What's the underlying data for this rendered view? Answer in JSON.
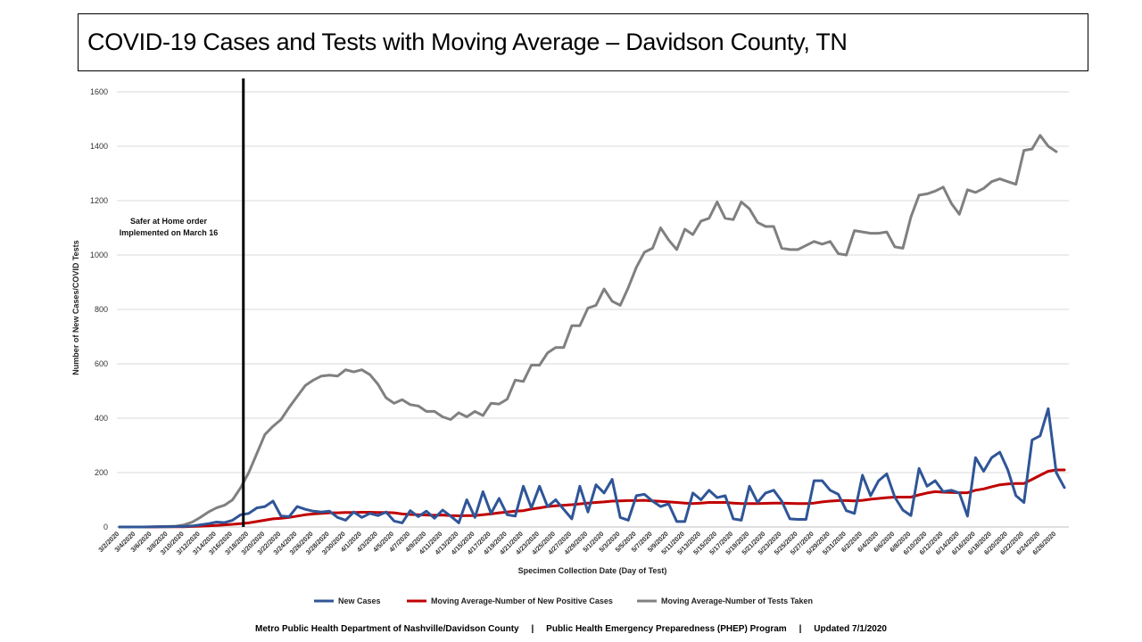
{
  "title": "COVID-19 Cases and Tests with Moving Average – Davidson County, TN",
  "footer": "Metro Public Health Department of Nashville/Davidson County     |     Public Health Emergency Preparedness (PHEP) Program     |     Updated 7/1/2020",
  "chart_data": {
    "type": "line",
    "xlabel": "Specimen Collection Date (Day of Test)",
    "ylabel": "Number of New Cases/COVID Tests",
    "ylim": [
      0,
      1600
    ],
    "yticks": [
      0,
      200,
      400,
      600,
      800,
      1000,
      1200,
      1400,
      1600
    ],
    "grid": true,
    "legend_position": "bottom",
    "start_date": "3/2/2020",
    "xticks": [
      "3/2/2020",
      "3/4/2020",
      "3/6/2020",
      "3/8/2020",
      "3/10/2020",
      "3/12/2020",
      "3/14/2020",
      "3/16/2020",
      "3/18/2020",
      "3/20/2020",
      "3/22/2020",
      "3/24/2020",
      "3/26/2020",
      "3/28/2020",
      "3/30/2020",
      "4/1/2020",
      "4/3/2020",
      "4/5/2020",
      "4/7/2020",
      "4/9/2020",
      "4/11/2020",
      "4/13/2020",
      "4/15/2020",
      "4/17/2020",
      "4/19/2020",
      "4/21/2020",
      "4/23/2020",
      "4/25/2020",
      "4/27/2020",
      "4/29/2020",
      "5/1/2020",
      "5/3/2020",
      "5/5/2020",
      "5/7/2020",
      "5/9/2020",
      "5/11/2020",
      "5/13/2020",
      "5/15/2020",
      "5/17/2020",
      "5/19/2020",
      "5/21/2020",
      "5/23/2020",
      "5/25/2020",
      "5/27/2020",
      "5/29/2020",
      "5/31/2020",
      "6/2/2020",
      "6/4/2020",
      "6/6/2020",
      "6/8/2020",
      "6/10/2020",
      "6/12/2020",
      "6/14/2020",
      "6/16/2020",
      "6/18/2020",
      "6/20/2020",
      "6/22/2020",
      "6/24/2020",
      "6/26/2020"
    ],
    "annotation": {
      "date": "3/17/2020",
      "lines": [
        "Safer at Home order",
        "Implemented on March 16"
      ]
    },
    "series": [
      {
        "name": "New Cases",
        "color": "#2F5597",
        "values": [
          0,
          0,
          0,
          0,
          1,
          1,
          1,
          2,
          2,
          4,
          8,
          12,
          18,
          16,
          25,
          45,
          50,
          70,
          75,
          95,
          40,
          38,
          75,
          65,
          58,
          55,
          58,
          35,
          25,
          55,
          35,
          50,
          42,
          55,
          22,
          15,
          60,
          38,
          58,
          32,
          62,
          40,
          15,
          100,
          35,
          130,
          50,
          105,
          45,
          40,
          150,
          70,
          150,
          75,
          100,
          65,
          30,
          150,
          55,
          155,
          125,
          175,
          35,
          25,
          115,
          120,
          95,
          75,
          85,
          20,
          20,
          125,
          100,
          135,
          108,
          115,
          30,
          25,
          150,
          90,
          125,
          135,
          95,
          30,
          28,
          28,
          170,
          170,
          135,
          120,
          60,
          50,
          190,
          115,
          170,
          195,
          110,
          62,
          42,
          215,
          150,
          170,
          130,
          135,
          125,
          40,
          255,
          205,
          255,
          275,
          210,
          115,
          90,
          320,
          335,
          435,
          200,
          145
        ]
      },
      {
        "name": "Moving Average-Number of New Positive Cases",
        "color": "#C00000",
        "values": [
          0,
          0,
          0,
          0,
          0,
          1,
          1,
          1,
          1,
          2,
          3,
          4,
          6,
          8,
          10,
          12,
          15,
          20,
          25,
          30,
          32,
          35,
          40,
          45,
          48,
          50,
          52,
          52,
          53,
          53,
          54,
          54,
          53,
          53,
          52,
          48,
          46,
          45,
          44,
          43,
          44,
          42,
          41,
          42,
          42,
          45,
          48,
          52,
          55,
          58,
          60,
          66,
          70,
          75,
          78,
          80,
          82,
          85,
          88,
          90,
          92,
          95,
          96,
          97,
          97,
          98,
          96,
          94,
          92,
          90,
          88,
          86,
          88,
          90,
          90,
          90,
          88,
          86,
          86,
          86,
          87,
          88,
          88,
          87,
          86,
          86,
          88,
          92,
          95,
          97,
          97,
          96,
          98,
          102,
          105,
          108,
          110,
          110,
          110,
          118,
          125,
          130,
          128,
          127,
          126,
          126,
          135,
          140,
          148,
          155,
          158,
          160,
          160,
          175,
          190,
          205,
          210,
          210
        ]
      },
      {
        "name": "Moving Average-Number of Tests Taken",
        "color": "#808080",
        "values": [
          0,
          0,
          0,
          0,
          0,
          1,
          2,
          3,
          8,
          18,
          35,
          55,
          70,
          80,
          100,
          145,
          200,
          270,
          340,
          370,
          395,
          440,
          480,
          520,
          540,
          555,
          558,
          555,
          578,
          570,
          578,
          560,
          525,
          475,
          455,
          468,
          450,
          445,
          425,
          425,
          405,
          395,
          420,
          405,
          425,
          410,
          455,
          452,
          470,
          540,
          535,
          595,
          595,
          640,
          660,
          660,
          740,
          740,
          805,
          815,
          875,
          830,
          815,
          880,
          955,
          1010,
          1025,
          1100,
          1055,
          1020,
          1095,
          1075,
          1125,
          1135,
          1195,
          1135,
          1130,
          1195,
          1170,
          1120,
          1105,
          1105,
          1025,
          1020,
          1020,
          1035,
          1050,
          1040,
          1050,
          1005,
          1000,
          1090,
          1085,
          1080,
          1080,
          1085,
          1030,
          1025,
          1140,
          1220,
          1225,
          1235,
          1250,
          1190,
          1150,
          1240,
          1230,
          1245,
          1270,
          1280,
          1270,
          1260,
          1385,
          1390,
          1440,
          1400,
          1380
        ]
      }
    ]
  }
}
